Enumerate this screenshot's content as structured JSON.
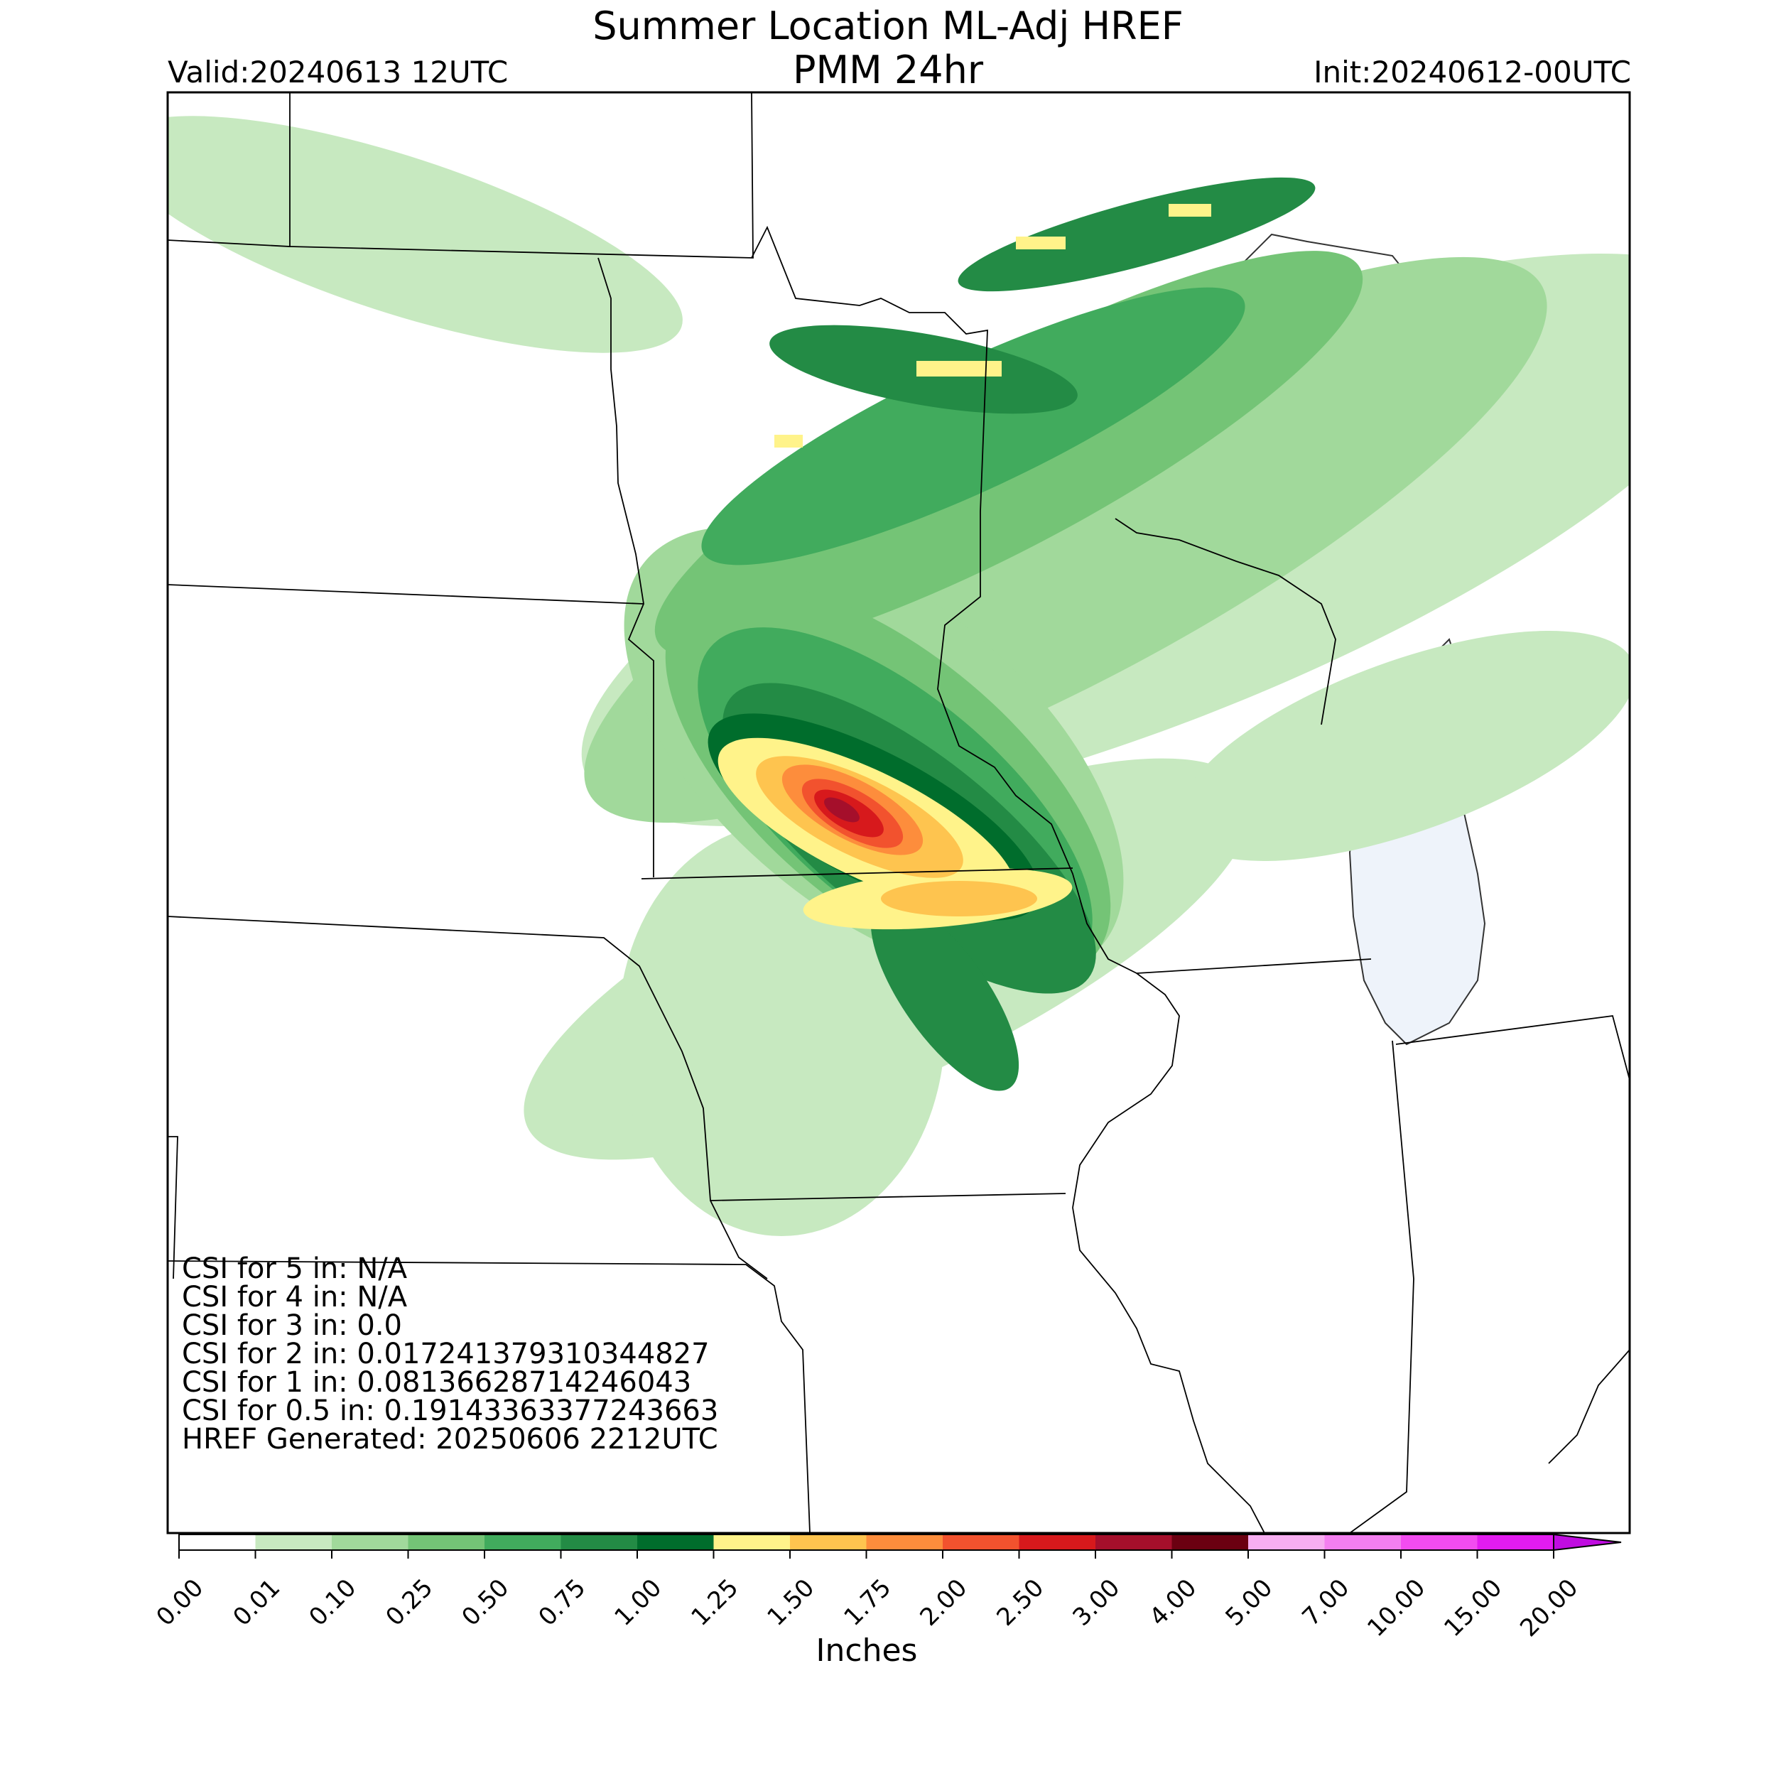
{
  "title": {
    "line1": "Summer Location ML-Adj HREF",
    "line2": "PMM 24hr"
  },
  "valid": "Valid:20240613 12UTC",
  "init": "Init:20240612-00UTC",
  "stats": [
    "CSI for 5 in: N/A",
    "CSI for 4 in: N/A",
    "CSI for 3 in: 0.0",
    "CSI for 2 in: 0.017241379310344827",
    "CSI for 1 in: 0.08136628714246043",
    "CSI for 0.5 in: 0.19143363377243663",
    "HREF Generated: 20250606 2212UTC"
  ],
  "colorbar": {
    "label": "Inches",
    "ticks": [
      "0.00",
      "0.01",
      "0.10",
      "0.25",
      "0.50",
      "0.75",
      "1.00",
      "1.25",
      "1.50",
      "1.75",
      "2.00",
      "2.50",
      "3.00",
      "4.00",
      "5.00",
      "7.00",
      "10.00",
      "15.00",
      "20.00"
    ],
    "colors": [
      "#ffffff",
      "#c7e9c0",
      "#a1d99b",
      "#74c476",
      "#41ab5d",
      "#238b45",
      "#006d2c",
      "#fff38a",
      "#fec44f",
      "#fd8d3c",
      "#f2522e",
      "#d7191c",
      "#a50f2b",
      "#6b0011",
      "#f7aef1",
      "#f47ff0",
      "#f24cf0",
      "#e21cf0",
      "#c00ce0",
      "#9b0bc8"
    ],
    "extend": "max"
  },
  "colors": {
    "water": "#eef3fa",
    "border": "#000000"
  }
}
